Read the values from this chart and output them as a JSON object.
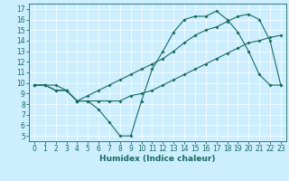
{
  "xlabel": "Humidex (Indice chaleur)",
  "bg_color": "#cceeff",
  "line_color": "#1a6b5e",
  "xlim": [
    -0.5,
    23.5
  ],
  "ylim": [
    4.5,
    17.5
  ],
  "xticks": [
    0,
    1,
    2,
    3,
    4,
    5,
    6,
    7,
    8,
    9,
    10,
    11,
    12,
    13,
    14,
    15,
    16,
    17,
    18,
    19,
    20,
    21,
    22,
    23
  ],
  "yticks": [
    5,
    6,
    7,
    8,
    9,
    10,
    11,
    12,
    13,
    14,
    15,
    16,
    17
  ],
  "line1_x": [
    0,
    1,
    2,
    3,
    4,
    5,
    6,
    7,
    8,
    9,
    10,
    11,
    12,
    13,
    14,
    15,
    16,
    17,
    18,
    19,
    20,
    21,
    22,
    23
  ],
  "line1_y": [
    9.8,
    9.8,
    9.8,
    9.3,
    8.3,
    8.3,
    7.5,
    6.3,
    5.0,
    5.0,
    8.3,
    11.3,
    13.0,
    14.8,
    16.0,
    16.3,
    16.3,
    16.8,
    16.0,
    14.8,
    13.0,
    10.8,
    9.8,
    9.8
  ],
  "line2_x": [
    0,
    1,
    2,
    3,
    4,
    5,
    6,
    7,
    8,
    9,
    10,
    11,
    12,
    13,
    14,
    15,
    16,
    17,
    18,
    19,
    20,
    21,
    22,
    23
  ],
  "line2_y": [
    9.8,
    9.8,
    9.3,
    9.3,
    8.3,
    8.3,
    8.3,
    8.3,
    8.3,
    8.8,
    9.0,
    9.3,
    9.8,
    10.3,
    10.8,
    11.3,
    11.8,
    12.3,
    12.8,
    13.3,
    13.8,
    14.0,
    14.3,
    14.5
  ],
  "line3_x": [
    0,
    1,
    2,
    3,
    4,
    5,
    6,
    7,
    8,
    9,
    10,
    11,
    12,
    13,
    14,
    15,
    16,
    17,
    18,
    19,
    20,
    21,
    22,
    23
  ],
  "line3_y": [
    9.8,
    9.8,
    9.3,
    9.3,
    8.3,
    8.8,
    9.3,
    9.8,
    10.3,
    10.8,
    11.3,
    11.8,
    12.3,
    13.0,
    13.8,
    14.5,
    15.0,
    15.3,
    15.8,
    16.3,
    16.5,
    16.0,
    14.0,
    9.8
  ],
  "tick_fontsize": 5.5,
  "xlabel_fontsize": 6.5,
  "marker_size": 2.0,
  "line_width": 0.8
}
